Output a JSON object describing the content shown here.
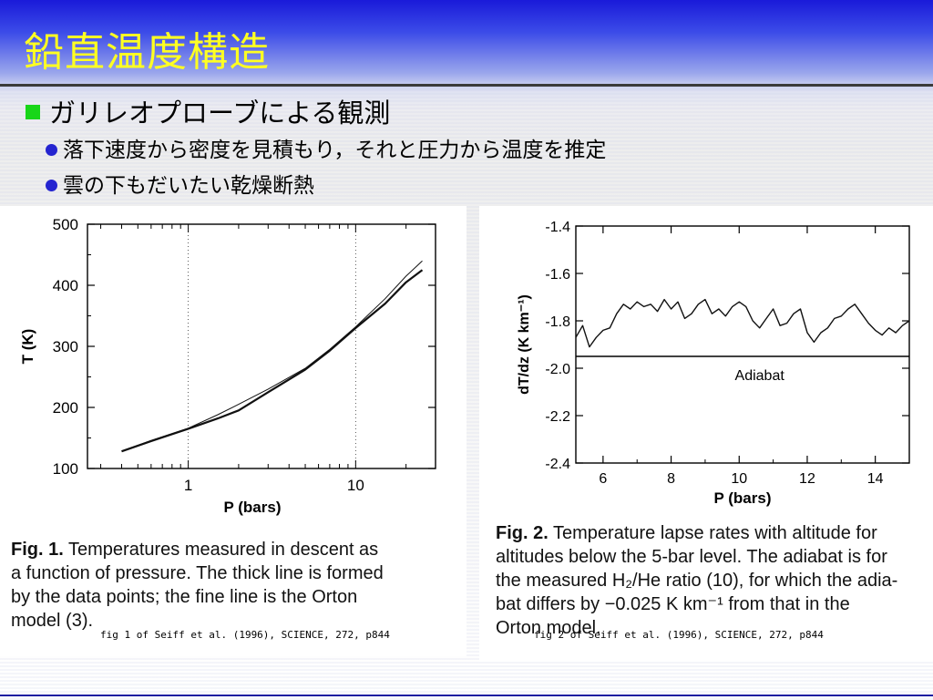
{
  "slide": {
    "title": "鉛直温度構造",
    "bullet_main": "ガリレオプローブによる観測",
    "sub_bullets": [
      "落下速度から密度を見積もり，それと圧力から温度を推定",
      "雲の下もだいたい乾燥断熱"
    ]
  },
  "figures": [
    {
      "caption_label": "Fig. 1.",
      "caption_lines": [
        "Temperatures measured in descent as",
        "a function of pressure. The thick line is formed",
        "by the data points; the fine line is the Orton",
        "model (3)."
      ],
      "source": "fig 1 of Seiff et al. (1996), SCIENCE, 272, p844"
    },
    {
      "caption_label": "Fig. 2.",
      "caption_lines": [
        "Temperature lapse rates with altitude for",
        "altitudes below the 5-bar level. The adiabat is for",
        "the measured H₂/He ratio (10), for which the adia-",
        "bat differs by −0.025 K km⁻¹ from that in the",
        "Orton model."
      ],
      "source": "fig 2 of Seiff et al. (1996), SCIENCE, 272, p844"
    }
  ],
  "chart_data": [
    {
      "type": "line",
      "xlabel": "P (bars)",
      "ylabel": "T (K)",
      "x_scale": "log",
      "xlim": [
        0.25,
        30
      ],
      "ylim": [
        100,
        500
      ],
      "x_ticks": [
        "1",
        "10"
      ],
      "y_ticks": [
        "100",
        "200",
        "300",
        "400",
        "500"
      ],
      "grid": "dotted at P=1 and P=10",
      "series": [
        {
          "x": [
            0.4,
            0.6,
            1,
            1.5,
            2,
            3,
            5,
            7,
            10,
            15,
            20,
            25
          ],
          "y": [
            128,
            145,
            165,
            182,
            195,
            225,
            262,
            293,
            330,
            370,
            405,
            425
          ]
        },
        {
          "x": [
            0.4,
            0.6,
            1,
            1.5,
            2,
            3,
            5,
            7,
            10,
            15,
            20,
            25
          ],
          "y": [
            128,
            146,
            166,
            188,
            205,
            230,
            264,
            295,
            332,
            378,
            415,
            440
          ]
        }
      ]
    },
    {
      "type": "line",
      "xlabel": "P (bars)",
      "ylabel": "dT/dz (K km⁻¹)",
      "xlim": [
        5.2,
        15
      ],
      "ylim": [
        -2.4,
        -1.4
      ],
      "x_ticks": [
        "6",
        "8",
        "10",
        "12",
        "14"
      ],
      "y_ticks": [
        "-1.4",
        "-1.6",
        "-1.8",
        "-2.0",
        "-2.2",
        "-2.4"
      ],
      "annotation": "Adiabat",
      "adiabat_value": -1.95,
      "series": [
        {
          "x": [
            5.2,
            5.4,
            5.6,
            5.8,
            6.0,
            6.2,
            6.4,
            6.6,
            6.8,
            7.0,
            7.2,
            7.4,
            7.6,
            7.8,
            8.0,
            8.2,
            8.4,
            8.6,
            8.8,
            9.0,
            9.2,
            9.4,
            9.6,
            9.8,
            10.0,
            10.2,
            10.4,
            10.6,
            10.8,
            11.0,
            11.2,
            11.4,
            11.6,
            11.8,
            12.0,
            12.2,
            12.4,
            12.6,
            12.8,
            13.0,
            13.2,
            13.4,
            13.6,
            13.8,
            14.0,
            14.2,
            14.4,
            14.6,
            14.8,
            15.0
          ],
          "y": [
            -1.87,
            -1.82,
            -1.91,
            -1.87,
            -1.84,
            -1.83,
            -1.77,
            -1.73,
            -1.75,
            -1.72,
            -1.74,
            -1.73,
            -1.76,
            -1.71,
            -1.75,
            -1.72,
            -1.79,
            -1.77,
            -1.73,
            -1.71,
            -1.77,
            -1.75,
            -1.78,
            -1.74,
            -1.72,
            -1.74,
            -1.8,
            -1.83,
            -1.79,
            -1.75,
            -1.82,
            -1.81,
            -1.77,
            -1.75,
            -1.85,
            -1.89,
            -1.85,
            -1.83,
            -1.79,
            -1.78,
            -1.75,
            -1.73,
            -1.77,
            -1.81,
            -1.84,
            -1.86,
            -1.83,
            -1.85,
            -1.82,
            -1.8
          ]
        }
      ]
    }
  ]
}
